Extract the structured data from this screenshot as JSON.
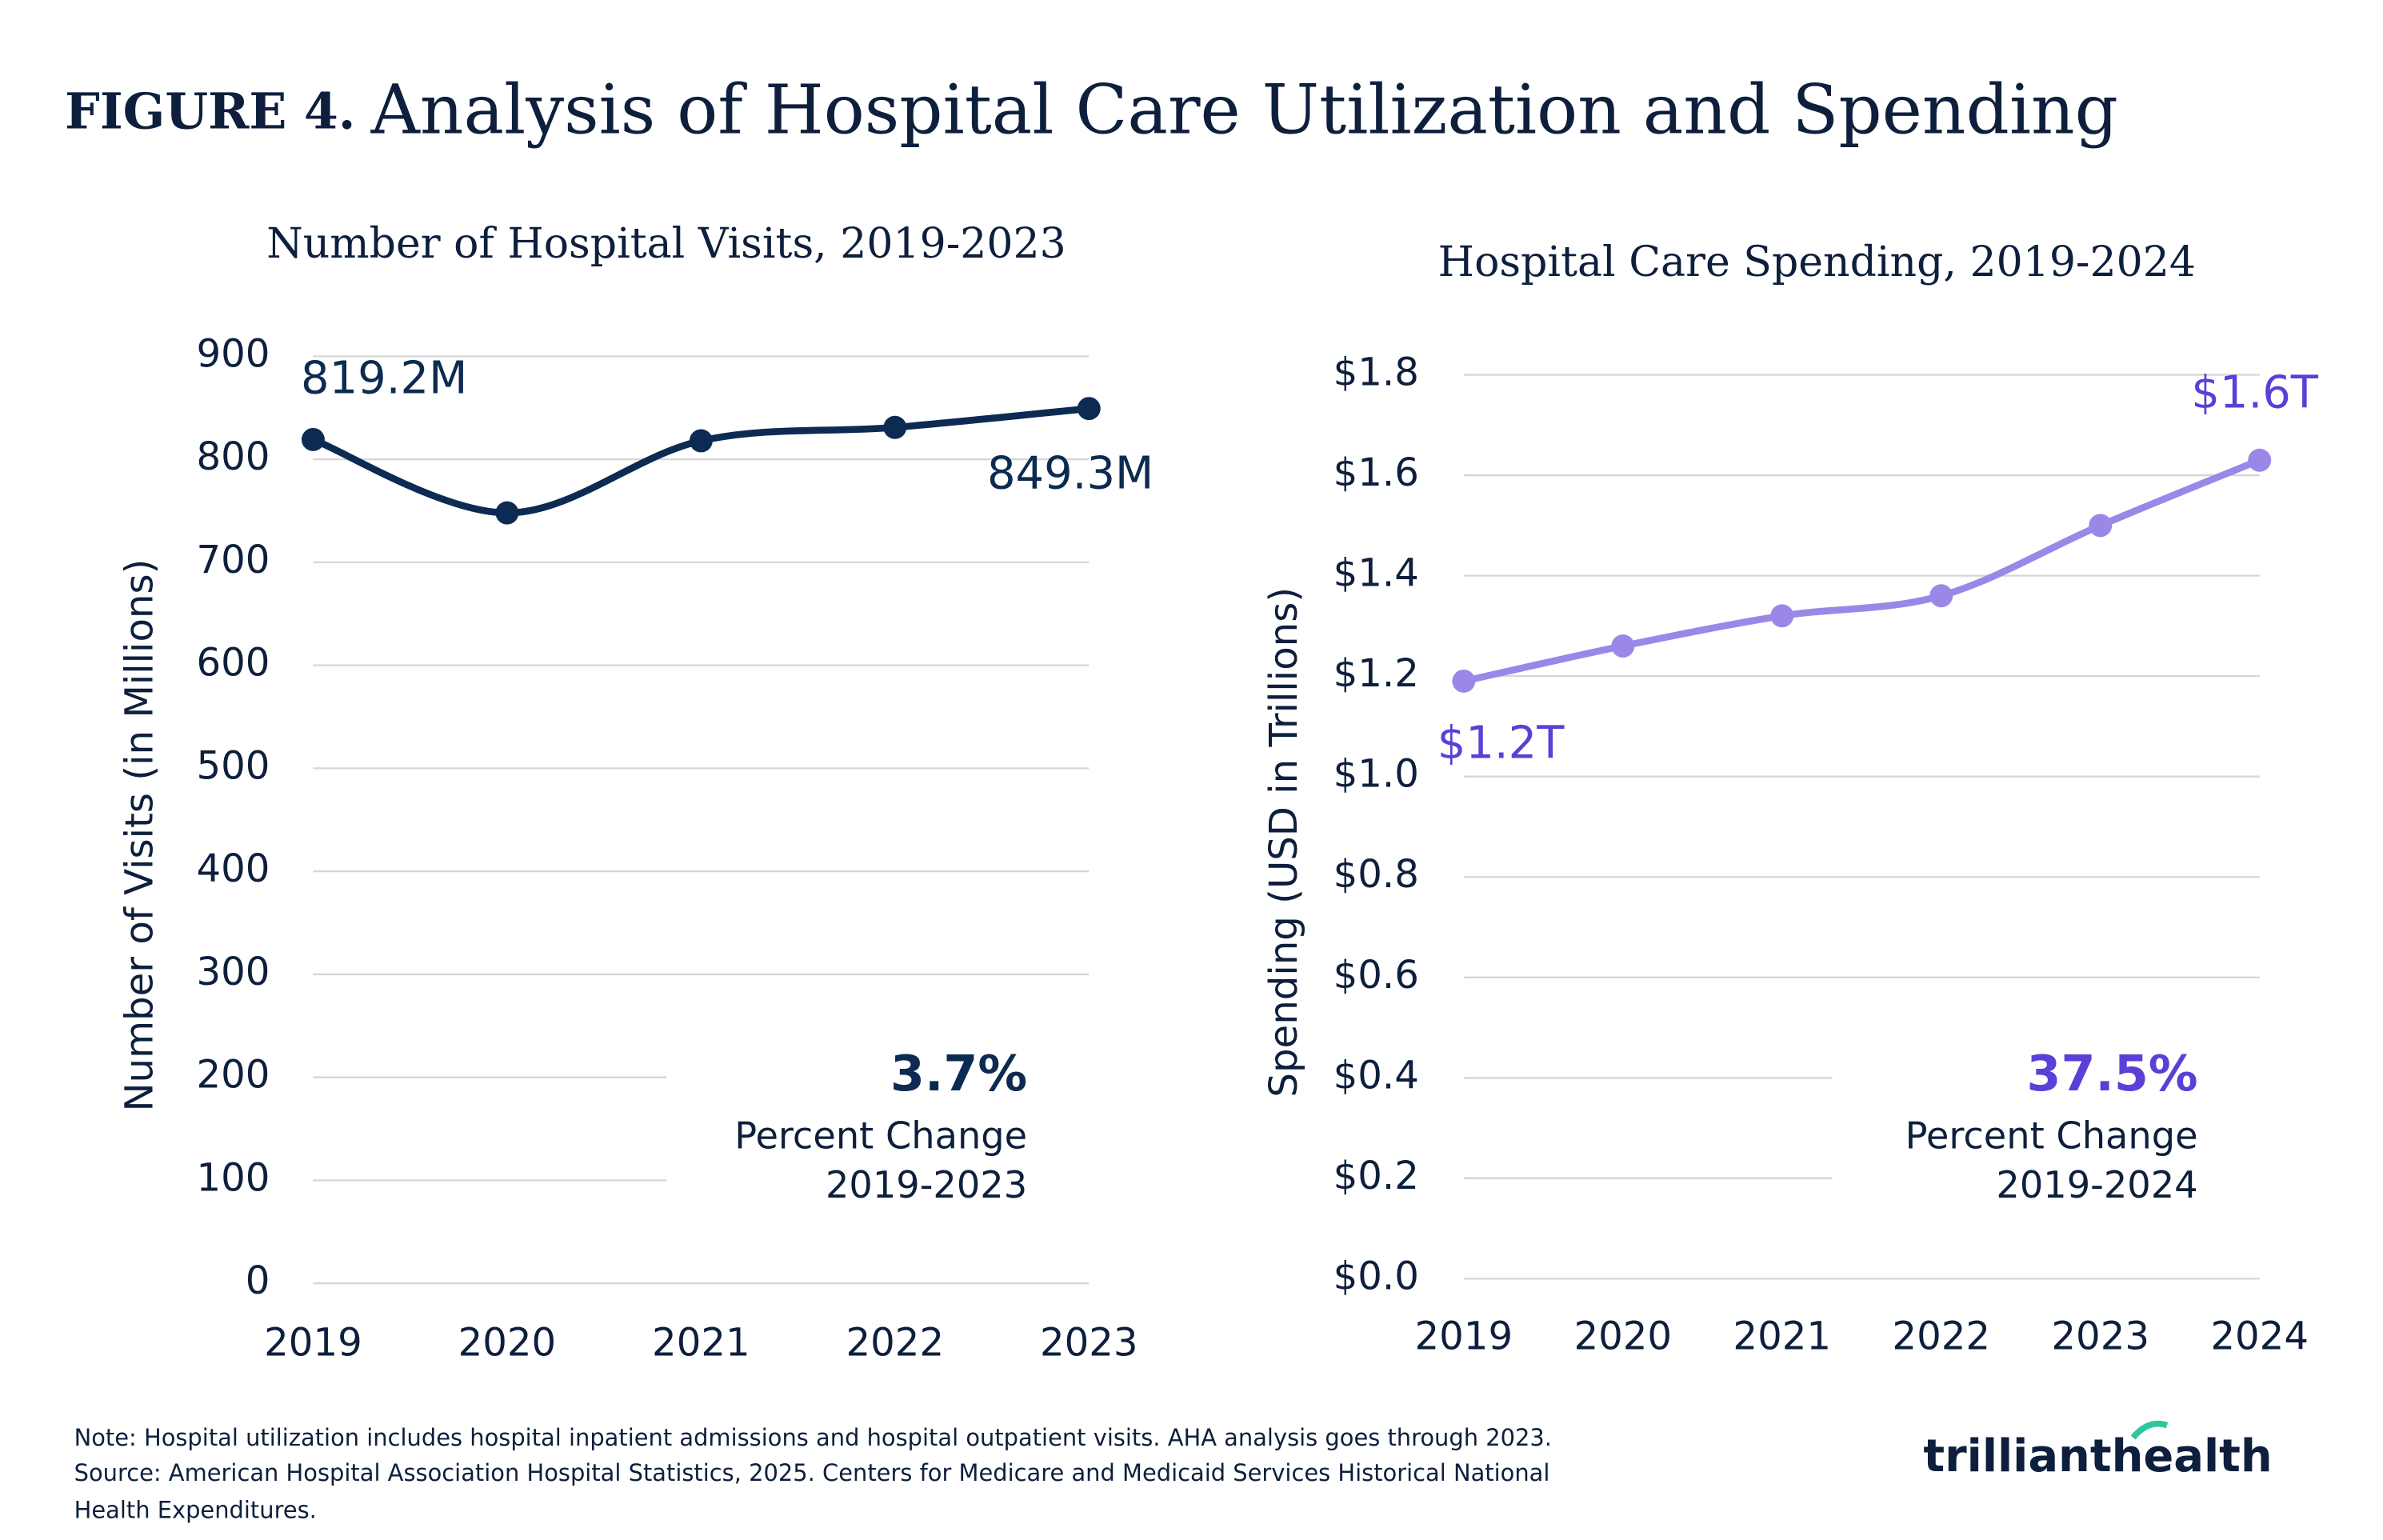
{
  "figure_label": "FIGURE 4.",
  "title": "Analysis of Hospital Care Utilization and Spending",
  "chart_data": [
    {
      "type": "line",
      "title": "Number of Hospital Visits, 2019-2023",
      "y_label": "Number of Visits (in Millions)",
      "categories": [
        "2019",
        "2020",
        "2021",
        "2022",
        "2023"
      ],
      "series": [
        {
          "name": "Hospital Visits",
          "color": "#0d2b52",
          "values": [
            819.2,
            748,
            818,
            831,
            849.3
          ],
          "value_labels": [
            "819.2M",
            null,
            null,
            null,
            "849.3M"
          ]
        }
      ],
      "label_color": "#0d2b52",
      "ylim": [
        0,
        900
      ],
      "yticks": [
        0,
        100,
        200,
        300,
        400,
        500,
        600,
        700,
        800,
        900
      ],
      "grid": true,
      "annotation": {
        "value": "3.7%",
        "line1": "Percent Change",
        "line2": "2019-2023"
      }
    },
    {
      "type": "line",
      "title": "Hospital Care Spending, 2019-2024",
      "y_label": "Spending (USD in Trillions)",
      "categories": [
        "2019",
        "2020",
        "2021",
        "2022",
        "2023",
        "2024"
      ],
      "series": [
        {
          "name": "Hospital Care Spending",
          "color": "#9b87e8",
          "values": [
            1.19,
            1.26,
            1.32,
            1.36,
            1.5,
            1.63
          ],
          "value_labels": [
            "$1.2T",
            null,
            null,
            null,
            null,
            "$1.6T"
          ]
        }
      ],
      "label_color": "#5b3fd6",
      "ylim": [
        0,
        1.8
      ],
      "yticks": [
        {
          "value": 0,
          "label": "$0.0"
        },
        {
          "value": 0.2,
          "label": "$0.2"
        },
        {
          "value": 0.4,
          "label": "$0.4"
        },
        {
          "value": 0.6,
          "label": "$0.6"
        },
        {
          "value": 0.8,
          "label": "$0.8"
        },
        {
          "value": 1.0,
          "label": "$1.0"
        },
        {
          "value": 1.2,
          "label": "$1.2"
        },
        {
          "value": 1.4,
          "label": "$1.4"
        },
        {
          "value": 1.6,
          "label": "$1.6"
        },
        {
          "value": 1.8,
          "label": "$1.8"
        }
      ],
      "grid": true,
      "annotation": {
        "value": "37.5%",
        "line1": "Percent Change",
        "line2": "2019-2024"
      }
    }
  ],
  "notes": [
    "Note: Hospital utilization includes hospital inpatient admissions and hospital outpatient visits. AHA analysis goes through 2023.",
    "Source: American Hospital Association Hospital Statistics, 2025. Centers for Medicare and Medicaid Services Historical National",
    "Health Expenditures."
  ],
  "brand": [
    "trilliant",
    "health"
  ]
}
